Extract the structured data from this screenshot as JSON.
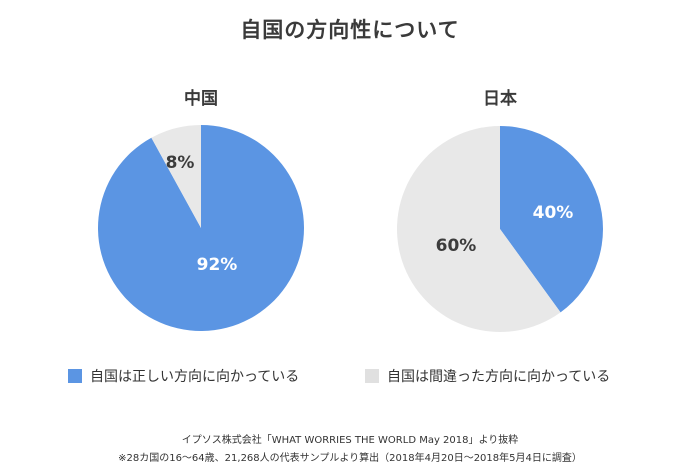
{
  "title": "自国の方向性について",
  "colors": {
    "right_direction": "#5b95e3",
    "wrong_direction": "#e8e8e8",
    "label_on_blue": "#ffffff",
    "label_on_gray": "#3c3c3c"
  },
  "legend": {
    "items": [
      {
        "label": "自国は正しい方向に向かっている",
        "color": "#5b95e3"
      },
      {
        "label": "自国は間違った方向に向かっている",
        "color": "#e0e0e0"
      }
    ]
  },
  "pies": [
    {
      "title": "中国",
      "slices": [
        {
          "label": "92%",
          "value": 92
        },
        {
          "label": "8%",
          "value": 8
        }
      ]
    },
    {
      "title": "日本",
      "slices": [
        {
          "label": "40%",
          "value": 40
        },
        {
          "label": "60%",
          "value": 60
        }
      ]
    }
  ],
  "source": {
    "line1": "イプソス株式会社「WHAT WORRIES THE WORLD May 2018」より抜粋",
    "line2": "※28カ国の16〜64歳、21,268人の代表サンプルより算出（2018年4月20日〜2018年5月4日に調査）"
  },
  "chart_data": [
    {
      "type": "pie",
      "title": "中国",
      "categories": [
        "自国は正しい方向に向かっている",
        "自国は間違った方向に向かっている"
      ],
      "values": [
        92,
        8
      ],
      "labels": [
        "92%",
        "8%"
      ],
      "colors": [
        "#5b95e3",
        "#e8e8e8"
      ],
      "legend_position": "bottom"
    },
    {
      "type": "pie",
      "title": "日本",
      "categories": [
        "自国は正しい方向に向かっている",
        "自国は間違った方向に向かっている"
      ],
      "values": [
        40,
        60
      ],
      "labels": [
        "40%",
        "60%"
      ],
      "colors": [
        "#5b95e3",
        "#e8e8e8"
      ],
      "legend_position": "bottom"
    }
  ]
}
